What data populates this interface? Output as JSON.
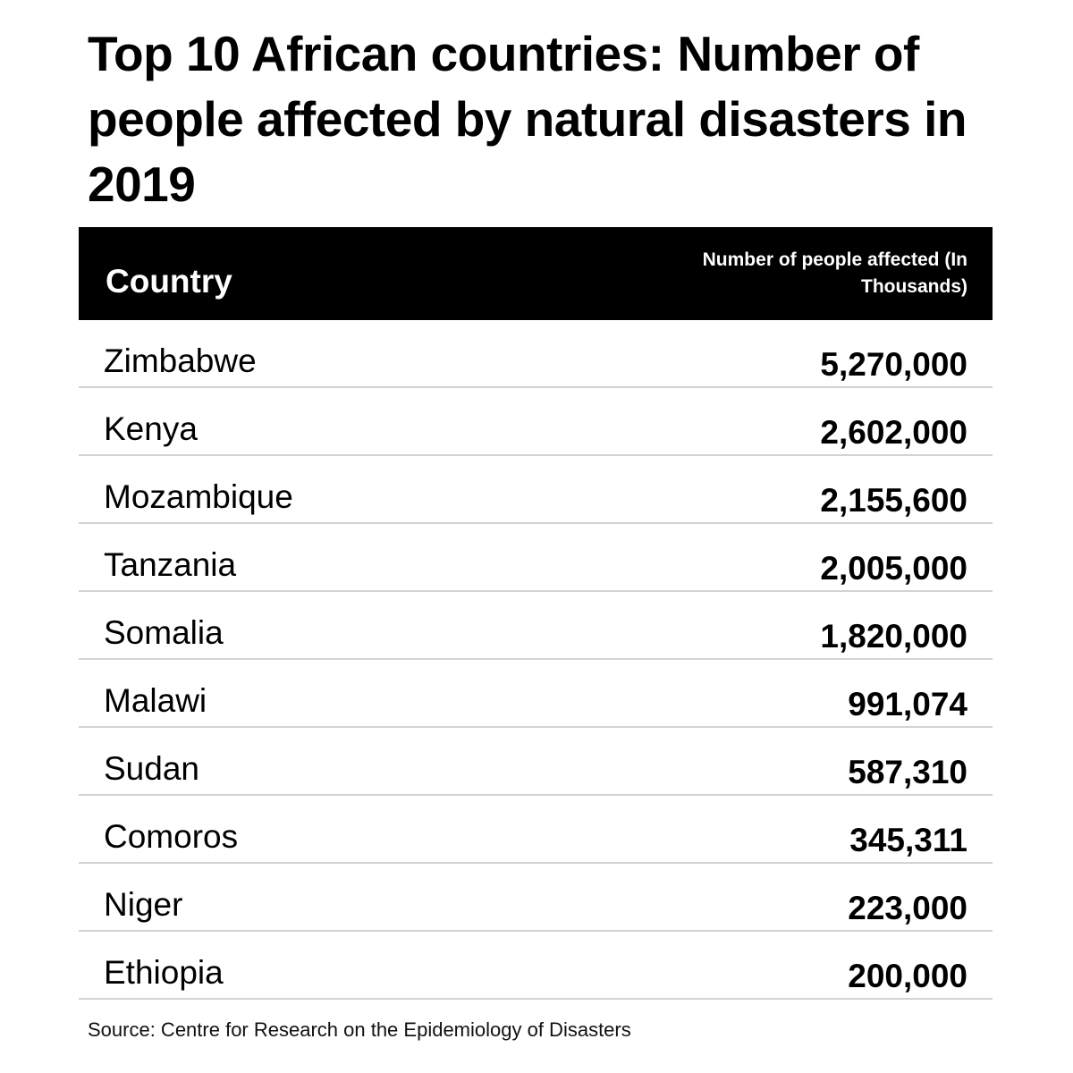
{
  "title": "Top 10 African countries: Number of people affected by natural disasters in 2019",
  "source": "Source: Centre for Research on the Epidemiology of Disasters",
  "colors": {
    "header_background": "#000000",
    "header_text": "#ffffff",
    "row_divider": "#d3d3d3",
    "text": "#000000"
  },
  "chart_data": {
    "type": "table",
    "title": "Top 10 African countries: Number of people affected by natural disasters in 2019",
    "columns": [
      "Country",
      "Number of people affected (In Thousands)"
    ],
    "rows": [
      {
        "country": "Zimbabwe",
        "value": "5,270,000"
      },
      {
        "country": "Kenya",
        "value": "2,602,000"
      },
      {
        "country": "Mozambique",
        "value": "2,155,600"
      },
      {
        "country": "Tanzania",
        "value": "2,005,000"
      },
      {
        "country": "Somalia",
        "value": "1,820,000"
      },
      {
        "country": "Malawi",
        "value": "991,074"
      },
      {
        "country": "Sudan",
        "value": "587,310"
      },
      {
        "country": "Comoros",
        "value": "345,311"
      },
      {
        "country": "Niger",
        "value": "223,000"
      },
      {
        "country": "Ethiopia",
        "value": "200,000"
      }
    ],
    "values": [
      5270000,
      2602000,
      2155600,
      2005000,
      1820000,
      991074,
      587310,
      345311,
      223000,
      200000
    ],
    "source": "Source: Centre for Research on the Epidemiology of Disasters"
  }
}
